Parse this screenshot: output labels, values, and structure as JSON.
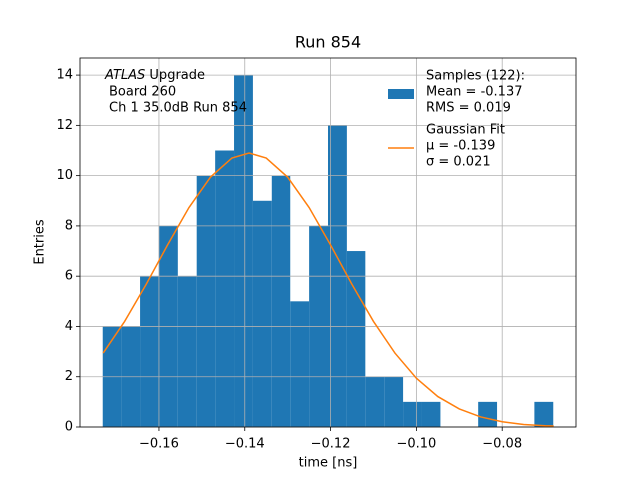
{
  "chart_data": {
    "type": "histogram",
    "title": "Run 854",
    "xlabel": "time [ns]",
    "ylabel": "Entries",
    "annotation": {
      "italic": "ATLAS",
      "lines": [
        "Upgrade",
        "Board 260",
        "Ch 1 35.0dB  Run 854"
      ]
    },
    "xlim": [
      -0.1784,
      -0.0628
    ],
    "ylim": [
      0,
      14.68
    ],
    "xticks": [
      {
        "value": -0.16,
        "label": "−0.16"
      },
      {
        "value": -0.14,
        "label": "−0.14"
      },
      {
        "value": -0.12,
        "label": "−0.12"
      },
      {
        "value": -0.1,
        "label": "−0.10"
      },
      {
        "value": -0.08,
        "label": "−0.08"
      }
    ],
    "yticks": [
      0,
      2,
      4,
      6,
      8,
      10,
      12,
      14
    ],
    "grid": true,
    "legend": "upper right",
    "series": [
      {
        "type": "histogram",
        "name": "Samples (122):",
        "stats": [
          "Mean = -0.137",
          "RMS = 0.019"
        ],
        "color": "#1f77b4",
        "bins": [
          -0.1731,
          -0.1687,
          -0.1644,
          -0.16,
          -0.1556,
          -0.1512,
          -0.1469,
          -0.1425,
          -0.1381,
          -0.1337,
          -0.1294,
          -0.125,
          -0.1206,
          -0.1162,
          -0.1119,
          -0.1075,
          -0.1031,
          -0.0987,
          -0.0944,
          -0.09,
          -0.0856,
          -0.0812,
          -0.0769,
          -0.0725,
          -0.0681
        ],
        "counts": [
          4,
          4,
          6,
          8,
          6,
          10,
          11,
          14,
          9,
          10,
          5,
          8,
          12,
          7,
          2,
          2,
          1,
          1,
          0,
          0,
          1,
          0,
          0,
          1
        ]
      },
      {
        "type": "line",
        "name": "Gaussian Fit",
        "stats": [
          "μ = -0.139",
          "σ = 0.021"
        ],
        "color": "#ff7f0e",
        "x": [
          -0.173,
          -0.168,
          -0.163,
          -0.158,
          -0.153,
          -0.148,
          -0.143,
          -0.139,
          -0.135,
          -0.13,
          -0.125,
          -0.12,
          -0.115,
          -0.11,
          -0.105,
          -0.1,
          -0.095,
          -0.09,
          -0.085,
          -0.08,
          -0.075,
          -0.07,
          -0.068
        ],
        "values": [
          2.94,
          4.2,
          5.67,
          7.24,
          8.73,
          9.94,
          10.7,
          10.9,
          10.7,
          9.94,
          8.73,
          7.24,
          5.67,
          4.2,
          2.94,
          1.94,
          1.21,
          0.72,
          0.4,
          0.21,
          0.1,
          0.05,
          0.04
        ]
      }
    ]
  }
}
